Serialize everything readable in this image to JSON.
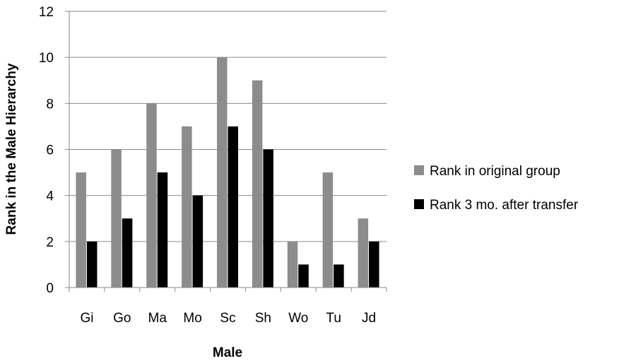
{
  "chart_data": {
    "type": "bar",
    "title": "",
    "xlabel": "Male",
    "ylabel": "Rank in the Male Hierarchy",
    "categories": [
      "Gi",
      "Go",
      "Ma",
      "Mo",
      "Sc",
      "Sh",
      "Wo",
      "Tu",
      "Jd"
    ],
    "series": [
      {
        "name": "Rank in original group",
        "values": [
          5,
          6,
          8,
          7,
          10,
          9,
          2,
          5,
          3
        ],
        "color": "#8c8c8c"
      },
      {
        "name": "Rank 3 mo. after transfer",
        "values": [
          2,
          3,
          5,
          4,
          7,
          6,
          1,
          1,
          2
        ],
        "color": "#000000"
      }
    ],
    "ylim": [
      0,
      12
    ],
    "yticks": [
      "0",
      "2",
      "4",
      "6",
      "8",
      "10",
      "12"
    ],
    "grid": true,
    "legend_position": "right"
  }
}
